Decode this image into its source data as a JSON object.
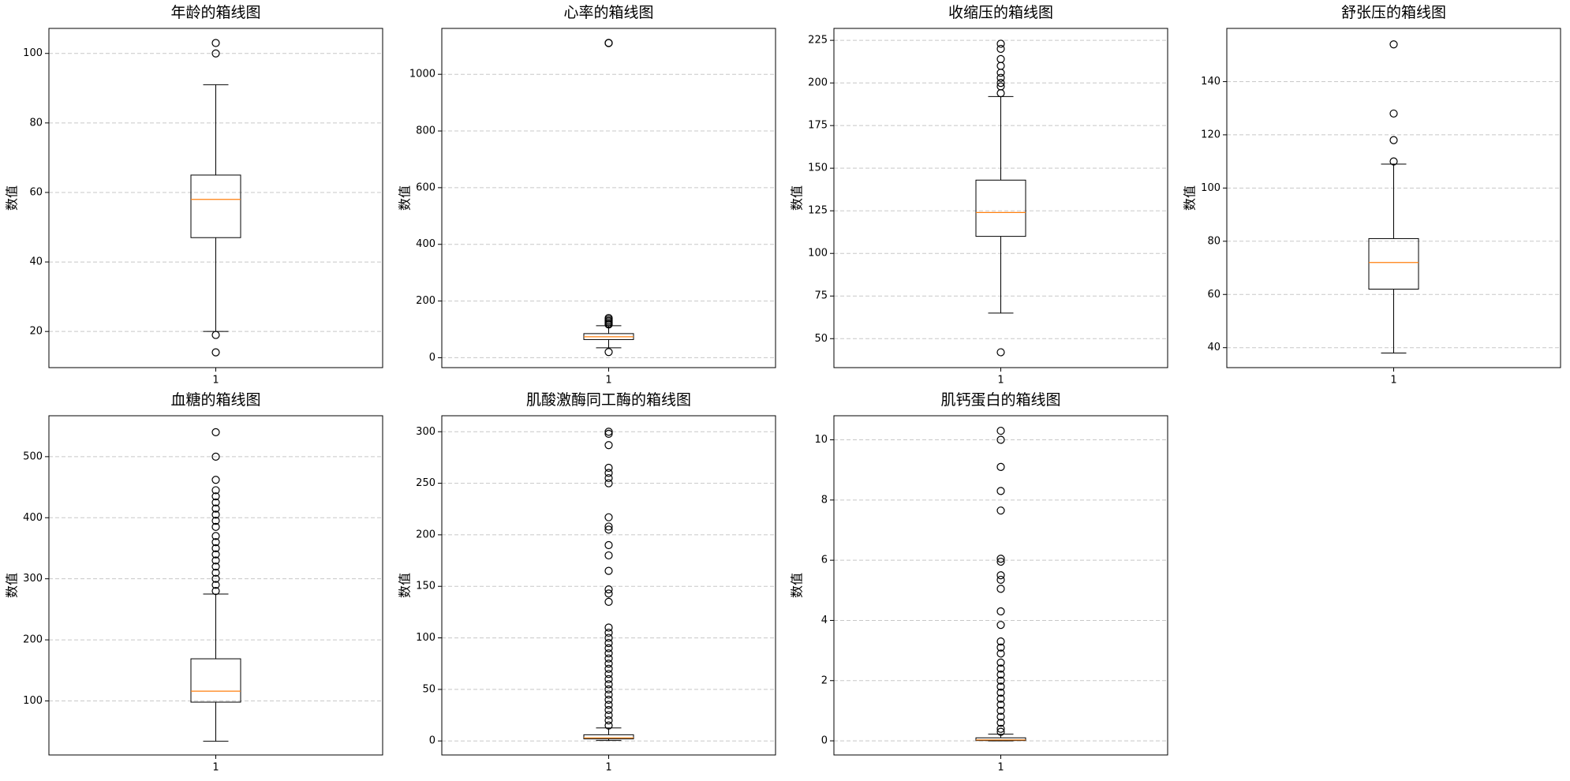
{
  "chart_data": [
    {
      "type": "box",
      "title": "年龄的箱线图",
      "ylabel": "数值",
      "categories": [
        "1"
      ],
      "ylim": [
        9.6,
        107.2
      ],
      "yticks": [
        20,
        40,
        60,
        80,
        100
      ],
      "grid": true,
      "median_color": "#ff7f0e",
      "whislo": 20,
      "q1": 47,
      "med": 58,
      "q3": 65,
      "whishi": 91,
      "fliers": [
        103,
        100,
        19,
        14
      ]
    },
    {
      "type": "box",
      "title": "心率的箱线图",
      "ylabel": "数值",
      "categories": [
        "1"
      ],
      "ylim": [
        -35,
        1162
      ],
      "yticks": [
        0,
        200,
        400,
        600,
        800,
        1000
      ],
      "grid": true,
      "median_color": "#ff7f0e",
      "whislo": 35,
      "q1": 64,
      "med": 74,
      "q3": 85,
      "whishi": 113,
      "fliers": [
        1111,
        1110,
        140,
        135,
        130,
        125,
        120,
        117,
        20
      ]
    },
    {
      "type": "box",
      "title": "收缩压的箱线图",
      "ylabel": "数值",
      "categories": [
        "1"
      ],
      "ylim": [
        33,
        232
      ],
      "yticks": [
        50,
        75,
        100,
        125,
        150,
        175,
        200,
        225
      ],
      "grid": true,
      "median_color": "#ff7f0e",
      "whislo": 65,
      "q1": 110,
      "med": 124,
      "q3": 143,
      "whishi": 192,
      "fliers": [
        223,
        220,
        214,
        210,
        206,
        203,
        200,
        198,
        194,
        42
      ]
    },
    {
      "type": "box",
      "title": "舒张压的箱线图",
      "ylabel": "数值",
      "categories": [
        "1"
      ],
      "ylim": [
        32.5,
        160
      ],
      "yticks": [
        40,
        60,
        80,
        100,
        120,
        140
      ],
      "grid": true,
      "median_color": "#ff7f0e",
      "whislo": 38,
      "q1": 62,
      "med": 72,
      "q3": 81,
      "whishi": 109,
      "fliers": [
        154,
        128,
        118,
        110
      ]
    },
    {
      "type": "box",
      "title": "血糖的箱线图",
      "ylabel": "数值",
      "categories": [
        "1"
      ],
      "ylim": [
        11.5,
        567
      ],
      "yticks": [
        100,
        200,
        300,
        400,
        500
      ],
      "grid": true,
      "median_color": "#ff7f0e",
      "whislo": 34,
      "q1": 98,
      "med": 116,
      "q3": 169,
      "whishi": 275,
      "fliers": [
        540,
        500,
        462,
        445,
        435,
        425,
        415,
        405,
        395,
        385,
        370,
        360,
        350,
        340,
        330,
        320,
        310,
        300,
        290,
        280
      ]
    },
    {
      "type": "box",
      "title": "肌酸激酶同工酶的箱线图",
      "ylabel": "数值",
      "categories": [
        "1"
      ],
      "ylim": [
        -13.6,
        315.5
      ],
      "yticks": [
        0,
        50,
        100,
        150,
        200,
        250,
        300
      ],
      "grid": true,
      "median_color": "#ff7f0e",
      "whislo": 0.5,
      "q1": 2,
      "med": 3,
      "q3": 6,
      "whishi": 12.6,
      "fliers": [
        300,
        298,
        287,
        265,
        260,
        255,
        250,
        217,
        208,
        205,
        190,
        180,
        165,
        147,
        143,
        135,
        110,
        105,
        100,
        95,
        90,
        85,
        80,
        75,
        70,
        65,
        60,
        55,
        50,
        45,
        40,
        35,
        30,
        25,
        20,
        15
      ]
    },
    {
      "type": "box",
      "title": "肌钙蛋白的箱线图",
      "ylabel": "数值",
      "categories": [
        "1"
      ],
      "ylim": [
        -0.47,
        10.8
      ],
      "yticks": [
        0,
        2,
        4,
        6,
        8,
        10
      ],
      "grid": true,
      "median_color": "#ff7f0e",
      "whislo": 0,
      "q1": 0.01,
      "med": 0.03,
      "q3": 0.1,
      "whishi": 0.22,
      "fliers": [
        10.3,
        10,
        9.1,
        8.3,
        7.65,
        6.05,
        5.95,
        5.5,
        5.35,
        5.05,
        4.3,
        3.85,
        3.3,
        3.1,
        2.9,
        2.6,
        2.4,
        2.2,
        2.0,
        1.8,
        1.6,
        1.4,
        1.2,
        1.0,
        0.8,
        0.6,
        0.4,
        0.3
      ]
    }
  ]
}
